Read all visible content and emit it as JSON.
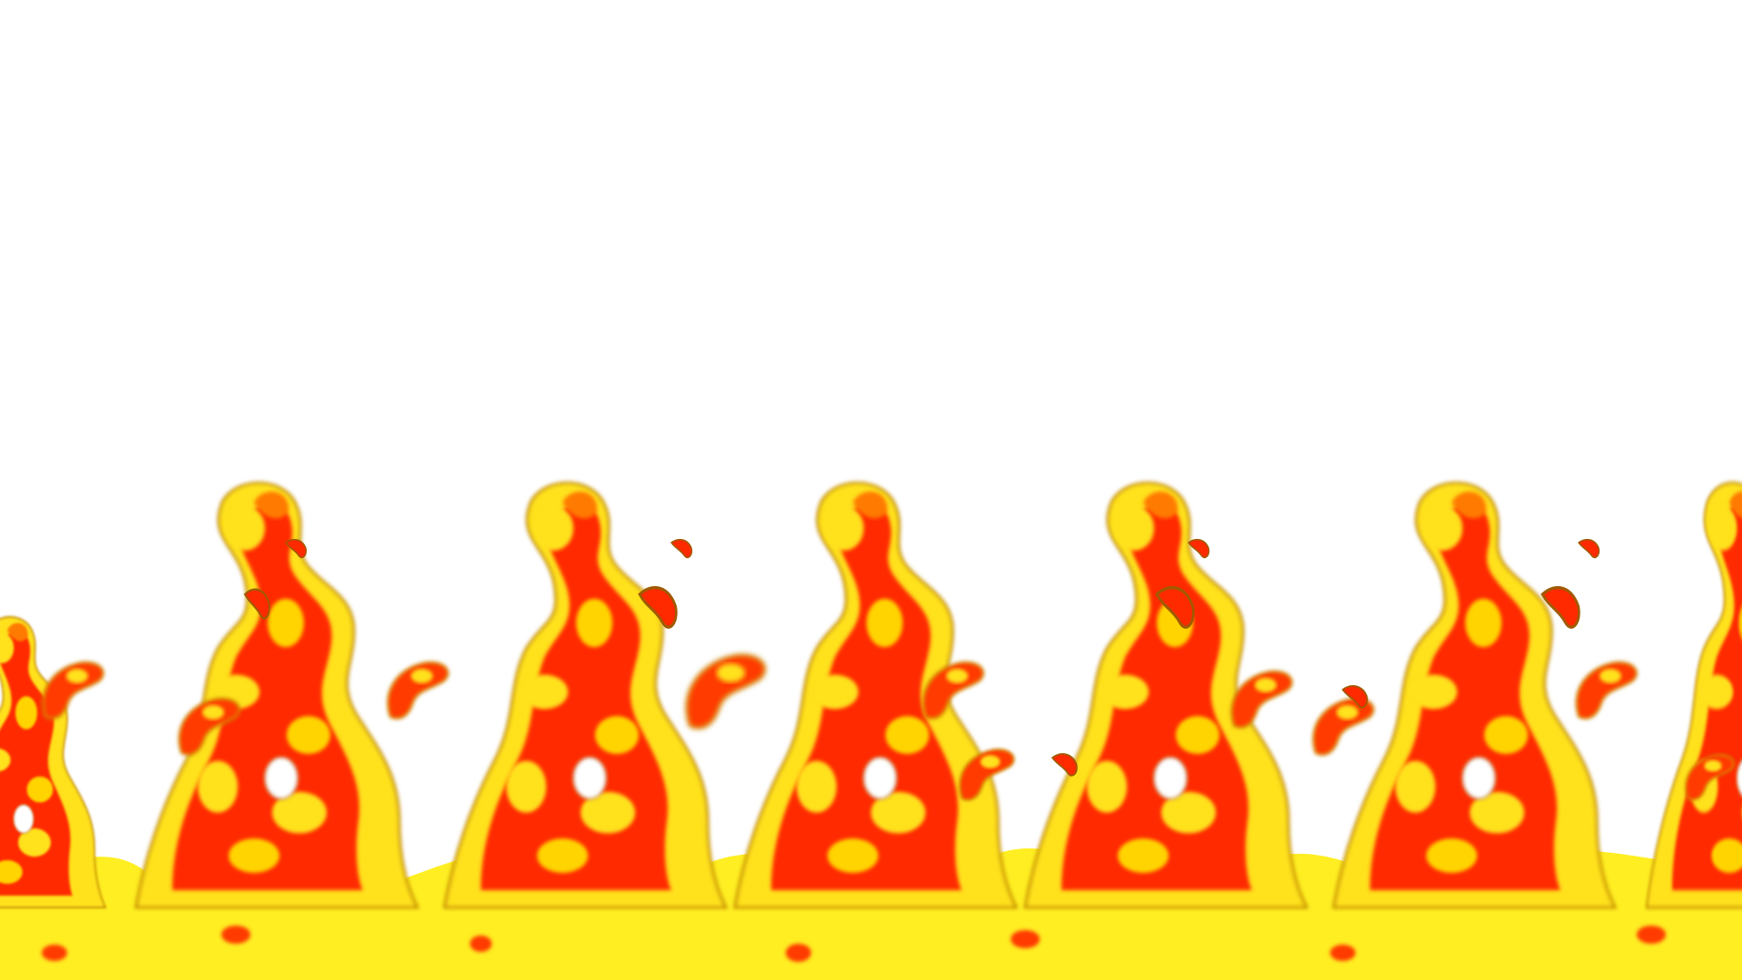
{
  "scene": {
    "description_label": "",
    "background_color": "#ffffff",
    "palette": {
      "base_yellow": "#ffee22",
      "deep_yellow": "#ffd400",
      "orange": "#ff7a00",
      "red": "#ff2a00",
      "edge": "#b36b00"
    },
    "flame_count": 5,
    "ember_count": 10
  }
}
